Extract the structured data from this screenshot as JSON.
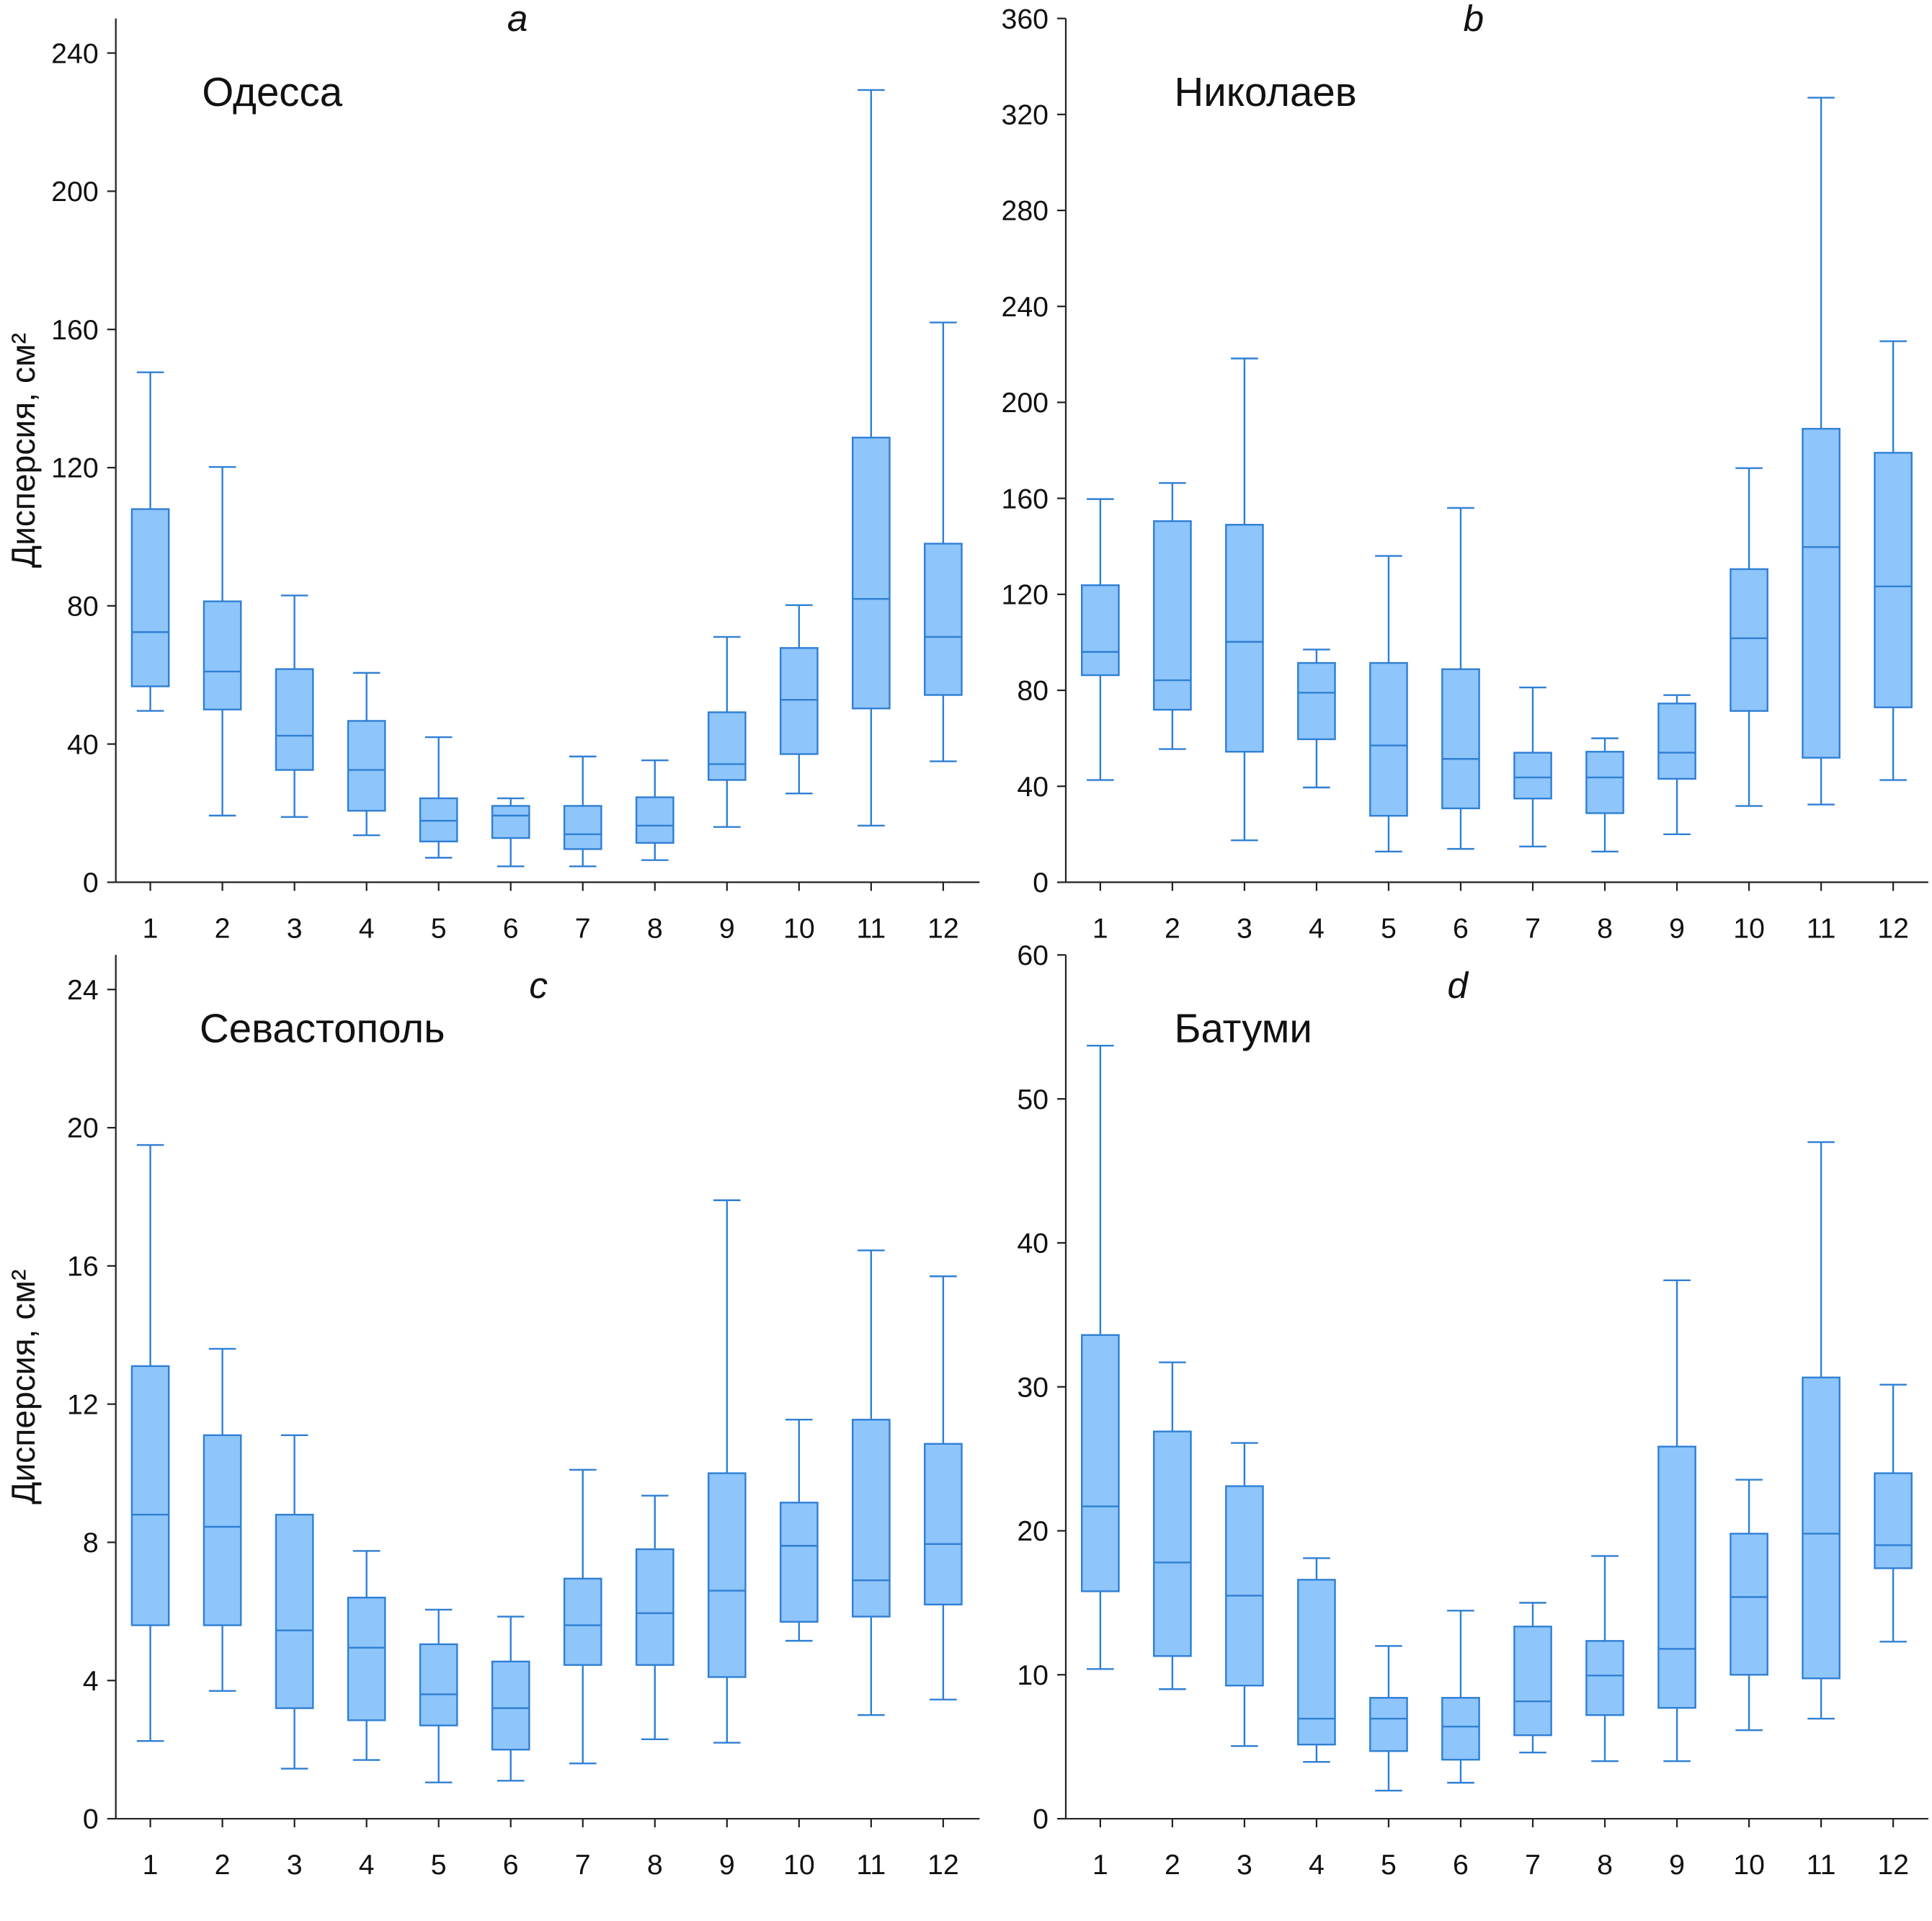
{
  "chart_data": [
    {
      "type": "box",
      "title": "a",
      "annotation": "Одесса",
      "y_label": "Дисперсия, см²",
      "categories": [
        "1",
        "2",
        "3",
        "4",
        "5",
        "6",
        "7",
        "8",
        "9",
        "10",
        "11",
        "12"
      ],
      "min": [
        49.6,
        19.3,
        18.9,
        13.6,
        7.1,
        4.6,
        4.6,
        6.4,
        16,
        25.7,
        16.4,
        35
      ],
      "q1": [
        56.7,
        50,
        32.5,
        20.7,
        11.8,
        12.8,
        9.6,
        11.4,
        29.6,
        37.1,
        50.3,
        54.2
      ],
      "median": [
        72.4,
        61,
        42.4,
        32.5,
        17.8,
        19.3,
        13.9,
        16.4,
        34.2,
        52.8,
        82,
        71
      ],
      "q3": [
        108,
        81.3,
        61.7,
        46.7,
        24.3,
        22.1,
        22.1,
        24.6,
        49.2,
        67.8,
        128.7,
        98
      ],
      "max": [
        147.6,
        120.2,
        83,
        60.6,
        42,
        24.3,
        36.4,
        35.3,
        71,
        80.2,
        229.3,
        162
      ],
      "ylim": [
        0,
        250
      ],
      "yticks": [
        0,
        40,
        80,
        120,
        160,
        200,
        240
      ],
      "color": "#8ec5fb",
      "edge_color": "#2f7fd4"
    },
    {
      "type": "box",
      "title": "b",
      "annotation": "Николаев",
      "categories": [
        "1",
        "2",
        "3",
        "4",
        "5",
        "6",
        "7",
        "8",
        "9",
        "10",
        "11",
        "12"
      ],
      "min": [
        42.6,
        55.5,
        17.5,
        39.5,
        12.8,
        13.9,
        14.9,
        12.8,
        20,
        31.8,
        32.4,
        42.6
      ],
      "q1": [
        86.3,
        71.9,
        54.4,
        59.6,
        27.7,
        30.8,
        34.9,
        28.8,
        43.1,
        71.4,
        51.9,
        72.9
      ],
      "median": [
        96,
        84.2,
        100.2,
        79,
        57,
        51.4,
        43.7,
        43.7,
        54,
        101.7,
        139.7,
        123.3
      ],
      "q3": [
        123.8,
        150.5,
        149,
        91.4,
        91.4,
        88.8,
        54,
        54.4,
        74.5,
        130.5,
        189,
        179
      ],
      "max": [
        159.7,
        166.4,
        218.3,
        97,
        136,
        156,
        81.2,
        60,
        78,
        172.6,
        327,
        225.5
      ],
      "ylim": [
        0,
        360
      ],
      "yticks": [
        0,
        40,
        80,
        120,
        160,
        200,
        240,
        280,
        320,
        360
      ],
      "color": "#8ec5fb",
      "edge_color": "#2f7fd4"
    },
    {
      "type": "box",
      "title": "c",
      "annotation": "Севастополь",
      "y_label": "Дисперсия, см²",
      "categories": [
        "1",
        "2",
        "3",
        "4",
        "5",
        "6",
        "7",
        "8",
        "9",
        "10",
        "11",
        "12"
      ],
      "min": [
        2.25,
        3.7,
        1.45,
        1.7,
        1.05,
        1.1,
        1.6,
        2.3,
        2.2,
        5.15,
        3,
        3.45
      ],
      "q1": [
        5.6,
        5.6,
        3.2,
        2.85,
        2.7,
        2,
        4.45,
        4.45,
        4.1,
        5.7,
        5.85,
        6.2
      ],
      "median": [
        8.8,
        8.45,
        5.45,
        4.95,
        3.6,
        3.2,
        5.6,
        5.95,
        6.6,
        7.9,
        6.9,
        7.95
      ],
      "q3": [
        13.1,
        11.1,
        8.8,
        6.4,
        5.05,
        4.55,
        6.95,
        7.8,
        10,
        9.15,
        11.55,
        10.85
      ],
      "max": [
        19.5,
        13.6,
        11.1,
        7.75,
        6.05,
        5.85,
        10.1,
        9.35,
        17.9,
        11.55,
        16.45,
        15.7
      ],
      "ylim": [
        0,
        25
      ],
      "yticks": [
        0,
        4,
        8,
        12,
        16,
        20,
        24
      ],
      "color": "#8ec5fb",
      "edge_color": "#2f7fd4"
    },
    {
      "type": "box",
      "title": "d",
      "annotation": "Батуми",
      "categories": [
        "1",
        "2",
        "3",
        "4",
        "5",
        "6",
        "7",
        "8",
        "9",
        "10",
        "11",
        "12"
      ],
      "min": [
        10.4,
        9,
        5.05,
        3.95,
        1.95,
        2.5,
        4.6,
        4,
        4,
        6.15,
        6.95,
        12.3
      ],
      "q1": [
        15.8,
        11.3,
        9.25,
        5.15,
        4.7,
        4.1,
        5.8,
        7.2,
        7.7,
        10,
        9.75,
        17.4
      ],
      "median": [
        21.7,
        17.8,
        15.5,
        6.95,
        6.95,
        6.4,
        8.15,
        9.95,
        11.8,
        15.4,
        19.8,
        19
      ],
      "q3": [
        33.6,
        26.9,
        23.1,
        16.6,
        8.4,
        8.4,
        13.35,
        12.35,
        25.85,
        19.8,
        30.65,
        24
      ],
      "max": [
        53.7,
        31.7,
        26.1,
        18.1,
        12,
        14.45,
        15,
        18.25,
        37.4,
        23.55,
        47,
        30.15
      ],
      "ylim": [
        0,
        60
      ],
      "yticks": [
        0,
        10,
        20,
        30,
        40,
        50,
        60
      ],
      "color": "#8ec5fb",
      "edge_color": "#2f7fd4"
    }
  ]
}
